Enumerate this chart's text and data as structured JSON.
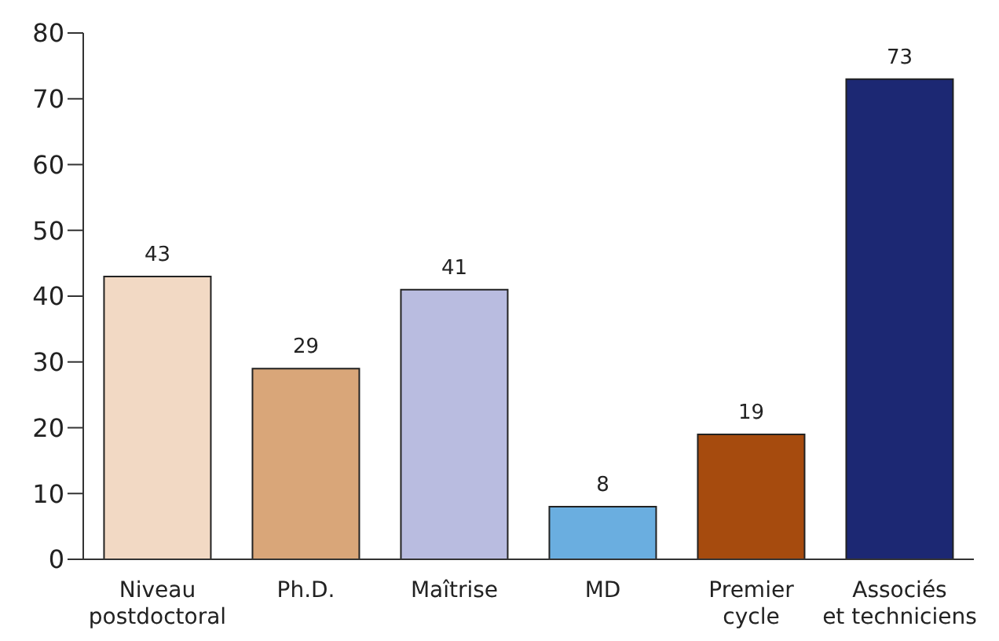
{
  "chart_data": {
    "type": "bar",
    "categories": [
      "Niveau postdoctoral",
      "Ph.D.",
      "Maîtrise",
      "MD",
      "Premier cycle",
      "Associés et techniciens"
    ],
    "values": [
      43,
      29,
      41,
      8,
      19,
      73
    ],
    "colors": [
      "#f2d9c4",
      "#d9a679",
      "#b9bce0",
      "#6aaee0",
      "#a64b0e",
      "#1c2873"
    ],
    "ylim": [
      0,
      80
    ],
    "yticks": [
      0,
      10,
      20,
      30,
      40,
      50,
      60,
      70,
      80
    ],
    "grid": false,
    "data_labels": true
  }
}
